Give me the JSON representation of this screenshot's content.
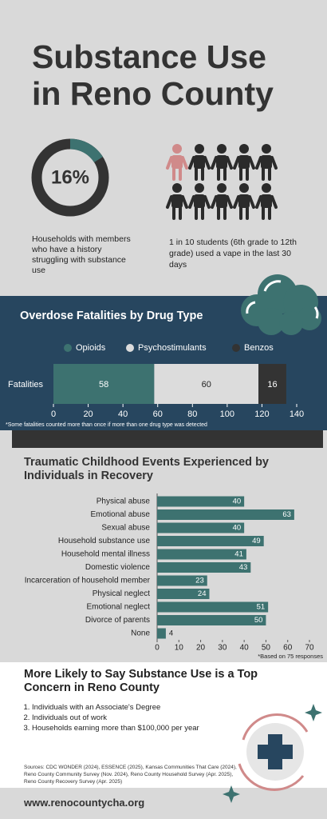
{
  "title": "Substance Use in Reno County",
  "households": {
    "value": 16,
    "value_label": "16%",
    "color": "#3d7270",
    "text": "Households with members who have a history struggling with substance use"
  },
  "vape": {
    "text": "1 in 10 students (6th grade to 12th grade) used a vape in the last 30 days"
  },
  "chart_data": [
    {
      "type": "stacked-bar",
      "title": "Overdose Fatalities by Drug Type",
      "categories": [
        "Fatalities"
      ],
      "series": [
        {
          "name": "Opioids",
          "color": "#3d7270",
          "values": [
            58
          ]
        },
        {
          "name": "Psychostimulants",
          "color": "#dcdcdc",
          "values": [
            60
          ]
        },
        {
          "name": "Benzos",
          "color": "#333333",
          "values": [
            16
          ]
        }
      ],
      "xlim": [
        0,
        140
      ],
      "xticks": [
        0,
        20,
        40,
        60,
        80,
        100,
        120,
        140
      ],
      "note": "*Some fatalities counted more than once if more than one drug type was detected"
    },
    {
      "type": "bar",
      "title": "Traumatic Childhood Events Experienced by Individuals in Recovery",
      "categories": [
        "Physical abuse",
        "Emotional abuse",
        "Sexual abuse",
        "Household substance use",
        "Household mental illness",
        "Domestic violence",
        "Incarceration of household member",
        "Physical neglect",
        "Emotional neglect",
        "Divorce of parents",
        "None"
      ],
      "values": [
        40,
        63,
        40,
        49,
        41,
        43,
        23,
        24,
        51,
        50,
        4
      ],
      "color": "#3d7270",
      "xlim": [
        0,
        70
      ],
      "xticks": [
        0,
        10,
        20,
        30,
        40,
        50,
        60,
        70
      ],
      "note": "*Based on 75 responses"
    }
  ],
  "concern": {
    "title": "More Likely to Say Substance Use is a Top Concern in Reno County",
    "items": [
      "Individuals with an Associate's Degree",
      "Individuals out of work",
      "Households earning more than $100,000 per year"
    ]
  },
  "sources": "Sources: CDC WONDER (2024), ESSENCE (2025), Kansas Communities That Care (2024), Reno County Community Survey (Nov. 2024), Reno County Household Survey (Apr. 2025), Reno County Recovery Survey (Apr. 2025)",
  "website": "www.renocountycha.org"
}
